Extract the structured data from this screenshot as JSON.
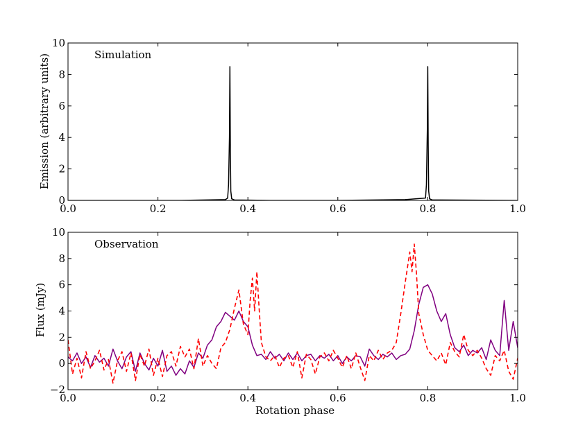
{
  "chart_data": [
    {
      "type": "line",
      "panel_label": "Simulation",
      "xlabel": "",
      "ylabel": "Emission (arbitrary units)",
      "xlim": [
        0.0,
        1.0
      ],
      "ylim": [
        0,
        10
      ],
      "xticks": [
        "0.0",
        "0.2",
        "0.4",
        "0.6",
        "0.8",
        "1.0"
      ],
      "yticks": [
        "0",
        "2",
        "4",
        "6",
        "8",
        "10"
      ],
      "series": [
        {
          "color": "#000000",
          "style": "solid",
          "x": [
            0.0,
            0.25,
            0.35,
            0.355,
            0.357,
            0.359,
            0.36,
            0.361,
            0.362,
            0.364,
            0.37,
            0.45,
            0.6,
            0.75,
            0.795,
            0.797,
            0.799,
            0.8,
            0.801,
            0.802,
            0.804,
            0.81,
            1.0
          ],
          "y": [
            0.0,
            0.0,
            0.05,
            0.15,
            1.0,
            4.0,
            8.5,
            3.5,
            0.6,
            0.1,
            0.03,
            0.0,
            0.0,
            0.05,
            0.15,
            1.0,
            4.5,
            8.5,
            3.5,
            0.6,
            0.1,
            0.03,
            0.0
          ]
        }
      ]
    },
    {
      "type": "line",
      "panel_label": "Observation",
      "xlabel": "Rotation phase",
      "ylabel": "Flux (mJy)",
      "xlim": [
        0.0,
        1.0
      ],
      "ylim": [
        -2,
        10
      ],
      "xticks": [
        "0.0",
        "0.2",
        "0.4",
        "0.6",
        "0.8",
        "1.0"
      ],
      "yticks": [
        "−2",
        "0",
        "2",
        "4",
        "6",
        "8",
        "10"
      ],
      "series": [
        {
          "color": "#800080",
          "style": "solid",
          "x": [
            0.0,
            0.01,
            0.02,
            0.03,
            0.04,
            0.05,
            0.06,
            0.07,
            0.08,
            0.09,
            0.1,
            0.11,
            0.12,
            0.13,
            0.14,
            0.15,
            0.16,
            0.17,
            0.18,
            0.19,
            0.2,
            0.21,
            0.22,
            0.23,
            0.24,
            0.25,
            0.26,
            0.27,
            0.28,
            0.29,
            0.3,
            0.31,
            0.32,
            0.33,
            0.34,
            0.35,
            0.36,
            0.37,
            0.38,
            0.39,
            0.4,
            0.41,
            0.42,
            0.43,
            0.44,
            0.45,
            0.46,
            0.47,
            0.48,
            0.49,
            0.5,
            0.51,
            0.52,
            0.53,
            0.54,
            0.55,
            0.56,
            0.57,
            0.58,
            0.59,
            0.6,
            0.61,
            0.62,
            0.63,
            0.64,
            0.65,
            0.66,
            0.67,
            0.68,
            0.69,
            0.7,
            0.71,
            0.72,
            0.73,
            0.74,
            0.75,
            0.76,
            0.77,
            0.78,
            0.79,
            0.8,
            0.81,
            0.82,
            0.83,
            0.84,
            0.85,
            0.86,
            0.87,
            0.88,
            0.89,
            0.9,
            0.91,
            0.92,
            0.93,
            0.94,
            0.95,
            0.96,
            0.97,
            0.98,
            0.99,
            1.0
          ],
          "y": [
            0.5,
            0.2,
            0.8,
            0.0,
            0.5,
            -0.3,
            0.6,
            0.1,
            0.4,
            -0.2,
            1.1,
            0.2,
            -0.4,
            0.5,
            0.9,
            -0.6,
            0.8,
            0.0,
            -0.5,
            0.4,
            -0.2,
            1.0,
            -0.6,
            -0.2,
            -0.9,
            -0.4,
            -0.8,
            0.2,
            -0.3,
            0.8,
            0.4,
            1.4,
            1.8,
            2.8,
            3.2,
            3.9,
            3.6,
            3.3,
            4.0,
            3.2,
            2.8,
            1.4,
            0.6,
            0.7,
            0.3,
            0.9,
            0.4,
            0.7,
            0.2,
            0.8,
            0.3,
            0.8,
            0.2,
            0.6,
            0.7,
            0.2,
            0.6,
            0.4,
            0.7,
            0.2,
            0.6,
            0.0,
            0.5,
            0.2,
            0.6,
            0.5,
            -0.2,
            1.1,
            0.6,
            0.3,
            0.7,
            0.5,
            0.8,
            0.3,
            0.6,
            0.7,
            1.1,
            2.5,
            4.5,
            5.8,
            6.0,
            5.3,
            4.0,
            3.2,
            3.8,
            2.2,
            1.2,
            0.9,
            1.4,
            0.6,
            1.0,
            0.8,
            1.2,
            0.3,
            1.8,
            1.0,
            0.6,
            4.8,
            1.0,
            3.2,
            1.2
          ]
        },
        {
          "color": "#ff0000",
          "style": "dashed",
          "x": [
            0.0,
            0.01,
            0.02,
            0.03,
            0.04,
            0.05,
            0.06,
            0.07,
            0.08,
            0.09,
            0.1,
            0.11,
            0.12,
            0.13,
            0.14,
            0.15,
            0.16,
            0.17,
            0.18,
            0.19,
            0.2,
            0.21,
            0.22,
            0.23,
            0.24,
            0.25,
            0.26,
            0.27,
            0.28,
            0.29,
            0.3,
            0.31,
            0.32,
            0.33,
            0.34,
            0.35,
            0.36,
            0.37,
            0.38,
            0.39,
            0.4,
            0.405,
            0.41,
            0.415,
            0.42,
            0.425,
            0.43,
            0.44,
            0.45,
            0.46,
            0.47,
            0.48,
            0.49,
            0.5,
            0.51,
            0.52,
            0.53,
            0.54,
            0.55,
            0.56,
            0.57,
            0.58,
            0.59,
            0.6,
            0.61,
            0.62,
            0.63,
            0.64,
            0.65,
            0.66,
            0.67,
            0.68,
            0.69,
            0.7,
            0.71,
            0.72,
            0.73,
            0.74,
            0.75,
            0.76,
            0.765,
            0.77,
            0.775,
            0.78,
            0.79,
            0.8,
            0.81,
            0.82,
            0.83,
            0.84,
            0.85,
            0.86,
            0.87,
            0.88,
            0.89,
            0.9,
            0.91,
            0.92,
            0.93,
            0.94,
            0.95,
            0.96,
            0.97,
            0.98,
            0.99,
            1.0
          ],
          "y": [
            1.8,
            -0.8,
            0.4,
            -1.1,
            0.9,
            -0.4,
            0.2,
            1.0,
            -0.5,
            0.3,
            -1.5,
            0.2,
            0.9,
            -0.6,
            0.8,
            -1.3,
            0.7,
            -0.2,
            1.1,
            -0.9,
            0.4,
            -1.0,
            0.6,
            0.9,
            -0.2,
            1.3,
            0.5,
            1.1,
            -0.4,
            1.9,
            -0.2,
            0.6,
            0.0,
            -0.4,
            1.2,
            1.6,
            2.6,
            4.2,
            5.6,
            3.0,
            2.2,
            4.8,
            6.5,
            4.0,
            7.0,
            4.2,
            1.6,
            0.5,
            0.2,
            0.6,
            -0.3,
            0.4,
            0.6,
            -0.3,
            0.9,
            -1.1,
            0.7,
            0.3,
            -0.8,
            0.5,
            0.8,
            0.2,
            1.0,
            0.4,
            -0.3,
            0.6,
            -0.4,
            0.8,
            -0.3,
            -1.3,
            0.6,
            0.2,
            1.0,
            0.3,
            0.8,
            1.0,
            1.6,
            3.8,
            6.2,
            8.5,
            7.0,
            9.1,
            6.8,
            3.8,
            2.2,
            1.0,
            0.6,
            0.2,
            0.8,
            -0.1,
            1.6,
            0.9,
            0.5,
            2.2,
            1.0,
            0.6,
            1.0,
            0.4,
            -0.4,
            -0.9,
            0.6,
            0.2,
            1.0,
            -0.6,
            -1.2,
            0.4
          ]
        }
      ]
    }
  ]
}
